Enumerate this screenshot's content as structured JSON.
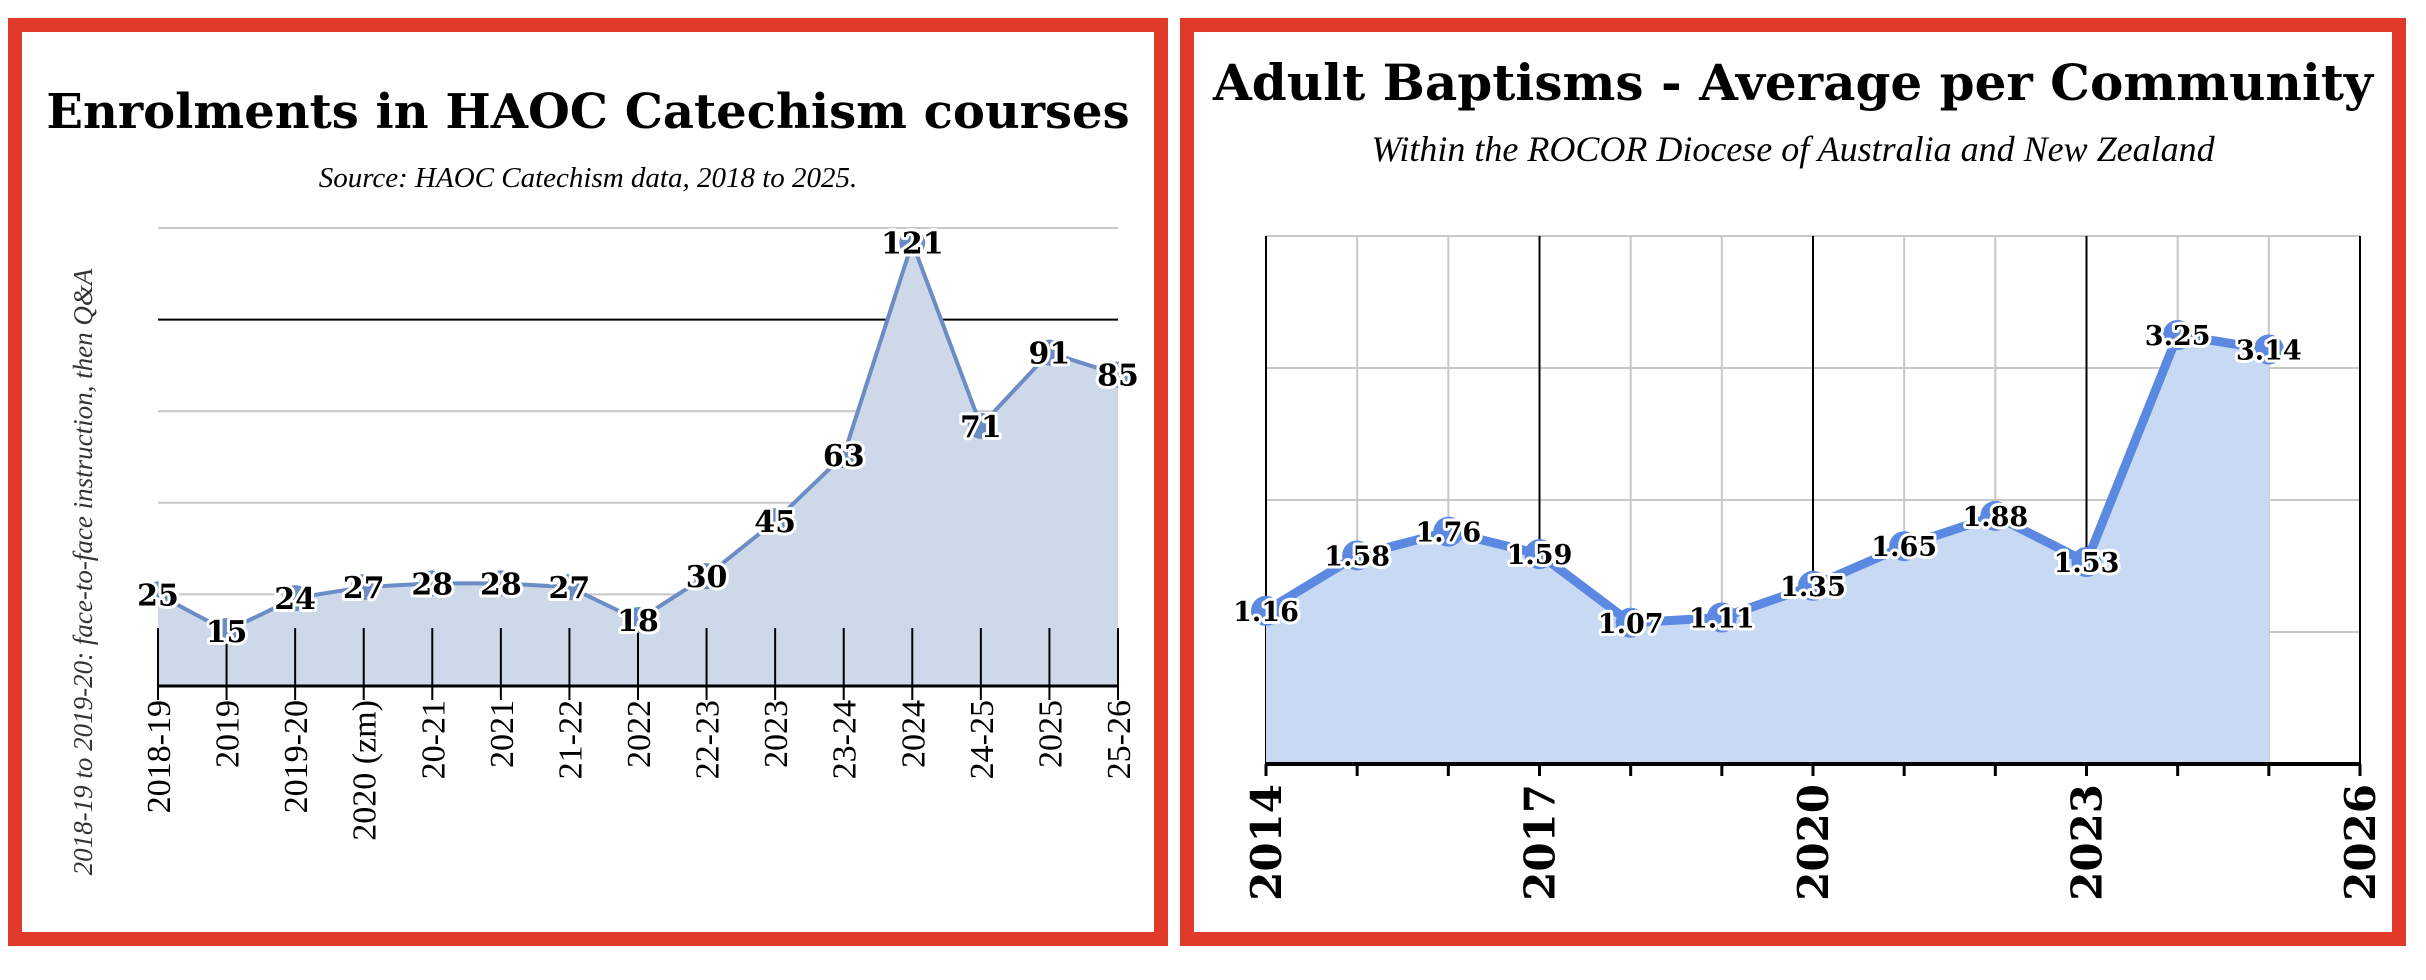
{
  "chart_data": [
    {
      "type": "area",
      "title": "Enrolments in HAOC Catechism courses",
      "subtitle": "Source: HAOC Catechism data, 2018 to 2025.",
      "ylabel": "2018-19 to 2019-20: face-to-face instruction, then Q&A",
      "categories": [
        "2018-19",
        "2019",
        "2019-20",
        "2020 (zm)",
        "20-21",
        "2021",
        "21-22",
        "2022",
        "22-23",
        "2023",
        "23-24",
        "2024",
        "24-25",
        "2025",
        "25-26"
      ],
      "values": [
        25,
        15,
        24,
        27,
        28,
        28,
        27,
        18,
        30,
        45,
        63,
        121,
        71,
        91,
        85
      ],
      "ylim": [
        0,
        125
      ],
      "gridlines": [
        25,
        50,
        75,
        100,
        125
      ],
      "emphasis_gridline": 100,
      "colors": {
        "line": "#6b8cc4",
        "fill": "#cdd9e8",
        "marker": "#6b8cc4"
      }
    },
    {
      "type": "area",
      "title": "Adult Baptisms - Average per Community",
      "subtitle": "Within the ROCOR Diocese of Australia and New Zealand",
      "x": [
        2014,
        2015,
        2016,
        2017,
        2018,
        2019,
        2020,
        2021,
        2022,
        2023,
        2024,
        2025
      ],
      "values": [
        1.16,
        1.58,
        1.76,
        1.59,
        1.07,
        1.11,
        1.35,
        1.65,
        1.88,
        1.53,
        3.25,
        3.14
      ],
      "xticks": [
        2014,
        2017,
        2020,
        2023,
        2026
      ],
      "xlim": [
        2014,
        2026
      ],
      "ylim": [
        0,
        4
      ],
      "gridlines": [
        1,
        2,
        3,
        4
      ],
      "colors": {
        "line": "#5b88e0",
        "fill": "#c8d9f4",
        "marker": "#5b88e0"
      }
    }
  ]
}
